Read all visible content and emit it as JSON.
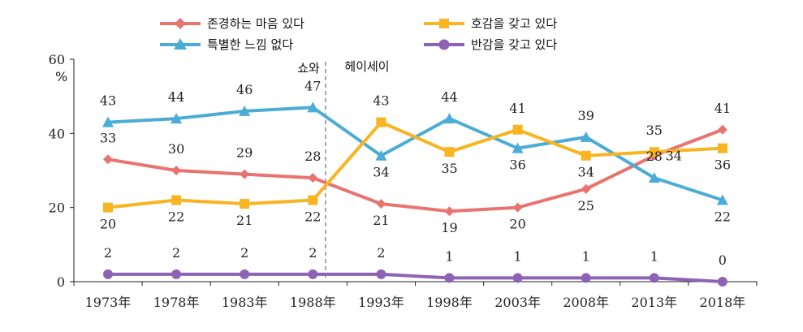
{
  "chart_data": {
    "type": "line",
    "title": "",
    "xlabel": "",
    "ylabel": "%",
    "ylim": [
      0,
      60
    ],
    "yticks": [
      "0",
      "20",
      "40",
      "60"
    ],
    "categories": [
      "1973年",
      "1978年",
      "1983年",
      "1988年",
      "1993年",
      "1998年",
      "2003年",
      "2008年",
      "2013年",
      "2018年"
    ],
    "annotations": {
      "era_before": "쇼와",
      "era_after": "헤이세이"
    },
    "series": [
      {
        "name": "존경하는 마음 있다",
        "color": "#E8736F",
        "marker": "diamond",
        "values": [
          33,
          30,
          29,
          28,
          21,
          19,
          20,
          25,
          34,
          41
        ],
        "labels": [
          "33",
          "30",
          "29",
          "28",
          "21",
          "19",
          "20",
          "25",
          "34",
          "41"
        ]
      },
      {
        "name": "특별한 느낌 없다",
        "color": "#4BACD6",
        "marker": "triangle",
        "values": [
          43,
          44,
          46,
          47,
          34,
          44,
          36,
          39,
          28,
          22
        ],
        "labels": [
          "43",
          "44",
          "46",
          "47",
          "34",
          "44",
          "36",
          "39",
          "28",
          "22"
        ]
      },
      {
        "name": "호감을 갖고 있다",
        "color": "#F8B421",
        "marker": "square",
        "values": [
          20,
          22,
          21,
          22,
          43,
          35,
          41,
          34,
          35,
          36
        ],
        "labels": [
          "20",
          "22",
          "21",
          "22",
          "43",
          "35",
          "41",
          "34",
          "35",
          "36"
        ]
      },
      {
        "name": "반감을 갖고 있다",
        "color": "#8E63B6",
        "marker": "circle",
        "values": [
          2,
          2,
          2,
          2,
          2,
          1,
          1,
          1,
          1,
          0
        ],
        "labels": [
          "2",
          "2",
          "2",
          "2",
          "2",
          "1",
          "1",
          "1",
          "1",
          "0"
        ]
      }
    ]
  }
}
